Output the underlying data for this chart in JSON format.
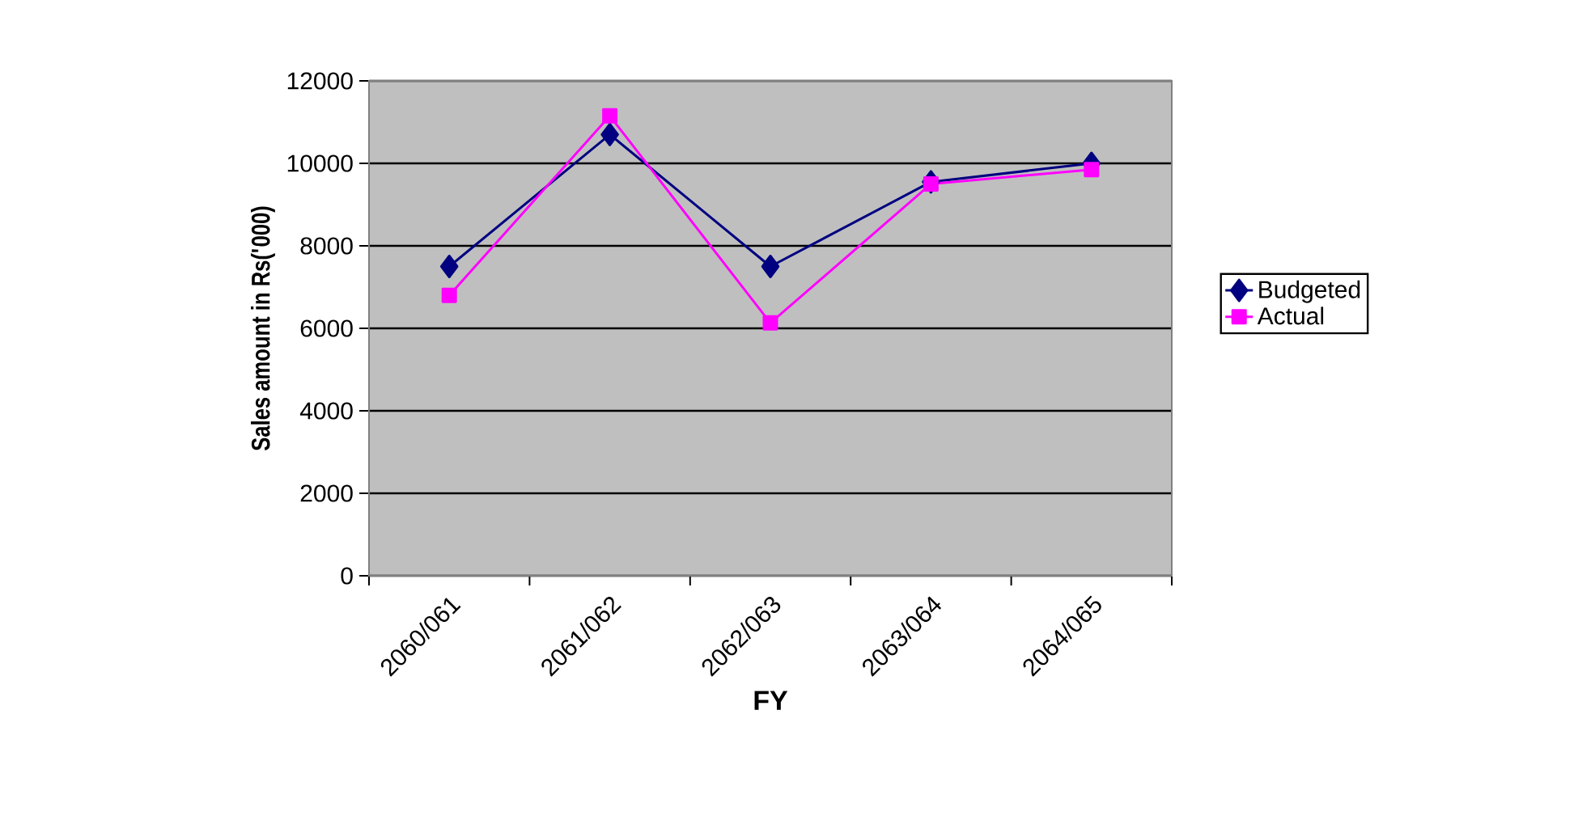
{
  "chart_data": {
    "type": "line",
    "xlabel": "FY",
    "ylabel": "Sales amount in Rs('000)",
    "categories": [
      "2060/061",
      "2061/062",
      "2062/063",
      "2063/064",
      "2064/065"
    ],
    "series": [
      {
        "name": "Budgeted",
        "color": "#000080",
        "marker": "diamond",
        "values": [
          7500,
          10700,
          7500,
          9550,
          10000
        ]
      },
      {
        "name": "Actual",
        "color": "#ff00ff",
        "marker": "square",
        "values": [
          6800,
          11150,
          6130,
          9500,
          9850
        ]
      }
    ],
    "ylim": [
      0,
      12000
    ],
    "yticks": [
      0,
      2000,
      4000,
      6000,
      8000,
      10000,
      12000
    ],
    "grid": "y",
    "legend": "right",
    "line_style": "solid"
  }
}
